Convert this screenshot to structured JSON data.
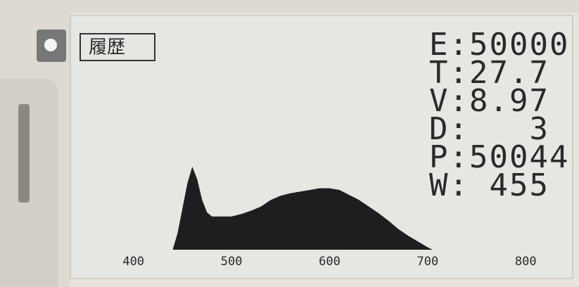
{
  "chart_data": {
    "type": "area",
    "label": "履歴",
    "readings": [
      "E:50000",
      "T:27.7",
      "V:8.97",
      "D:   3",
      "P:50044",
      "W: 455"
    ],
    "x": [
      440,
      445,
      450,
      455,
      460,
      465,
      470,
      475,
      480,
      490,
      500,
      510,
      520,
      530,
      540,
      550,
      560,
      570,
      580,
      590,
      600,
      610,
      620,
      630,
      640,
      650,
      660,
      670,
      680,
      690,
      700,
      705
    ],
    "values": [
      0,
      20,
      50,
      80,
      100,
      85,
      60,
      45,
      40,
      40,
      40,
      43,
      47,
      52,
      60,
      65,
      68,
      70,
      72,
      74,
      74,
      72,
      66,
      60,
      52,
      44,
      35,
      25,
      17,
      10,
      3,
      0
    ],
    "color": "#1e1e1e",
    "xlim": [
      350,
      845
    ],
    "ylim": [
      0,
      100
    ],
    "xticks": [
      400,
      500,
      600,
      700,
      800
    ],
    "grid": false
  }
}
